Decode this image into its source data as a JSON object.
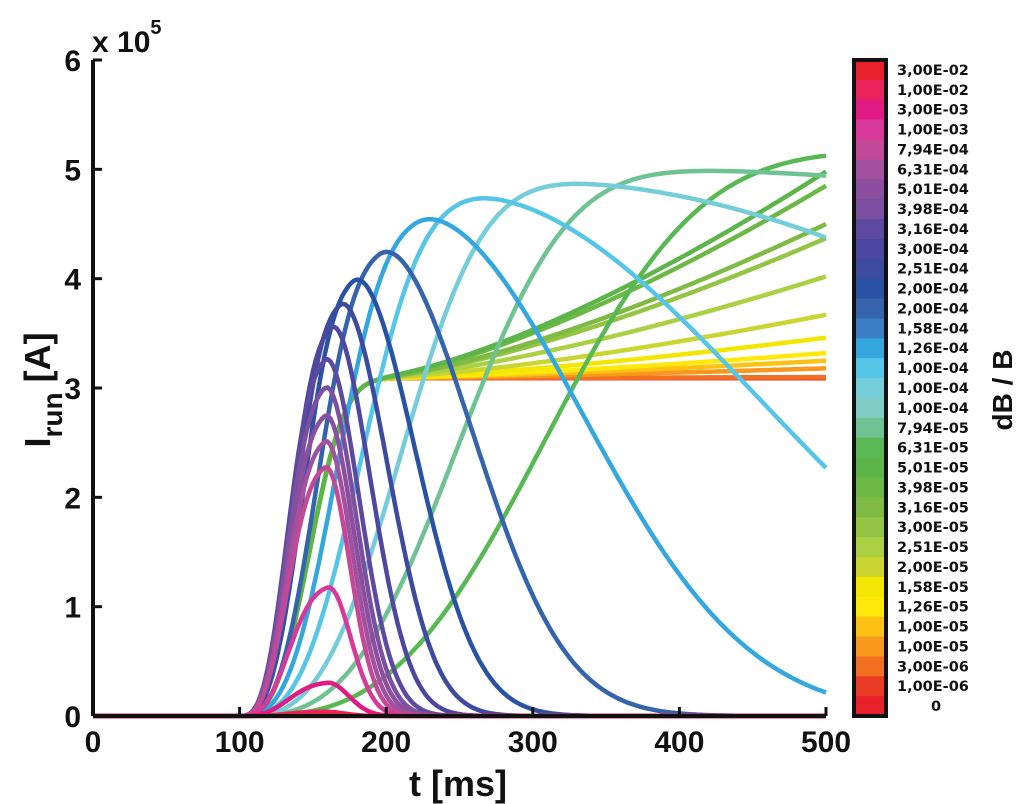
{
  "chart_data": {
    "type": "line",
    "xlabel": "t [ms]",
    "ylabel_main": "I",
    "ylabel_sub": "run",
    "ylabel_unit": " [A]",
    "y_multiplier": "x 10",
    "y_multiplier_exp": "5",
    "xlim": [
      0,
      500
    ],
    "ylim": [
      0,
      600000
    ],
    "x_ticks": [
      0,
      100,
      200,
      300,
      400,
      500
    ],
    "y_ticks": [
      0,
      100000,
      200000,
      300000,
      400000,
      500000,
      600000
    ],
    "x_tick_labels": [
      "0",
      "100",
      "200",
      "300",
      "400",
      "500"
    ],
    "y_tick_labels": [
      "0",
      "1",
      "2",
      "3",
      "4",
      "5",
      "6"
    ],
    "grid": false,
    "colorbar": {
      "title": "dB / B",
      "labels": [
        "3,00E-02",
        "1,00E-02",
        "3,00E-03",
        "1,00E-03",
        "7,94E-04",
        "6,31E-04",
        "5,01E-04",
        "3,98E-04",
        "3,16E-04",
        "3,00E-04",
        "2,51E-04",
        "2,00E-04",
        "2,00E-04",
        "1,58E-04",
        "1,26E-04",
        "1,00E-04",
        "1,00E-04",
        "1,00E-04",
        "7,94E-05",
        "6,31E-05",
        "5,01E-05",
        "3,98E-05",
        "3,16E-05",
        "3,00E-05",
        "2,51E-05",
        "2,00E-05",
        "1,58E-05",
        "1,26E-05",
        "1,00E-05",
        "1,00E-05",
        "3,00E-06",
        "1,00E-06",
        "0"
      ],
      "colors": [
        "#e8202a",
        "#e8245a",
        "#e21a84",
        "#d8399a",
        "#c44898",
        "#a2519f",
        "#8c4f9f",
        "#7c4fa0",
        "#5c4aa0",
        "#4c48a0",
        "#3c4aa0",
        "#2a52a4",
        "#3564ac",
        "#3c7ec4",
        "#34a7de",
        "#56c6e8",
        "#74cdd8",
        "#80cbc4",
        "#6fc393",
        "#58b954",
        "#5cb548",
        "#6cb844",
        "#7eba44",
        "#93c443",
        "#acd044",
        "#cad532",
        "#f3e600",
        "#ffe80a",
        "#ffc212",
        "#f8981d",
        "#f36f21",
        "#ea3c24",
        "#e8202a"
      ]
    },
    "series": [
      {
        "color": "#e8202a",
        "rise": 0.1,
        "peak": 0.5,
        "kind": "hump",
        "tpeak": 150,
        "decay": 50
      },
      {
        "color": "#e8245a",
        "rise": 0.1,
        "peak": 4000,
        "kind": "hump",
        "tpeak": 158,
        "decay": 18
      },
      {
        "color": "#e21a84",
        "rise": 0.1,
        "peak": 31000,
        "kind": "hump",
        "tpeak": 160,
        "decay": 20
      },
      {
        "color": "#d8399a",
        "rise": 0.1,
        "peak": 120000,
        "kind": "hump",
        "tpeak": 160,
        "decay": 22
      },
      {
        "color": "#c44898",
        "rise": 0.1,
        "peak": 232000,
        "kind": "hump",
        "tpeak": 158,
        "decay": 24
      },
      {
        "color": "#a2519f",
        "rise": 0.1,
        "peak": 256000,
        "kind": "hump",
        "tpeak": 158,
        "decay": 26
      },
      {
        "color": "#8c4f9f",
        "rise": 0.1,
        "peak": 280000,
        "kind": "hump",
        "tpeak": 158,
        "decay": 28
      },
      {
        "color": "#7c4fa0",
        "rise": 0.1,
        "peak": 306000,
        "kind": "hump",
        "tpeak": 158,
        "decay": 30
      },
      {
        "color": "#5c4aa0",
        "rise": 0.1,
        "peak": 332000,
        "kind": "hump",
        "tpeak": 158,
        "decay": 33
      },
      {
        "color": "#4c48a0",
        "rise": 0.1,
        "peak": 362000,
        "kind": "hump",
        "tpeak": 162,
        "decay": 38
      },
      {
        "color": "#3c4aa0",
        "rise": 0.1,
        "peak": 383000,
        "kind": "hump",
        "tpeak": 168,
        "decay": 46
      },
      {
        "color": "#2a52a4",
        "rise": 0.1,
        "peak": 405000,
        "kind": "hump",
        "tpeak": 177,
        "decay": 60
      },
      {
        "color": "#3564ac",
        "rise": 0.1,
        "peak": 430000,
        "kind": "hump",
        "tpeak": 195,
        "decay": 90
      },
      {
        "color": "#34a7de",
        "rise": 0.1,
        "peak": 459000,
        "kind": "hump",
        "tpeak": 220,
        "decay": 160
      },
      {
        "color": "#56c6e8",
        "rise": 0.1,
        "peak": 477000,
        "kind": "hump",
        "tpeak": 250,
        "decay": 290
      },
      {
        "color": "#74cdd8",
        "rise": 0.1,
        "peak": 489000,
        "kind": "hump",
        "tpeak": 300,
        "decay": 600
      },
      {
        "color": "#6fc393",
        "rise": 0.1,
        "peak": 500000,
        "kind": "hump",
        "tpeak": 370,
        "decay": 1200
      },
      {
        "color": "#58b954",
        "rise": 0.1,
        "peak": 517000,
        "kind": "hump",
        "tpeak": 480,
        "decay": 3000
      },
      {
        "color": "#5cb548",
        "rise": 0.1,
        "peak": 498000,
        "kind": "sat",
        "tpeak": 500,
        "decay": 0
      },
      {
        "color": "#6cb844",
        "rise": 0.1,
        "peak": 485000,
        "kind": "sat",
        "tpeak": 500,
        "decay": 0
      },
      {
        "color": "#7eba44",
        "rise": 0.1,
        "peak": 450000,
        "kind": "sat",
        "tpeak": 500,
        "decay": 0
      },
      {
        "color": "#93c443",
        "rise": 0.1,
        "peak": 437000,
        "kind": "sat",
        "tpeak": 500,
        "decay": 0
      },
      {
        "color": "#acd044",
        "rise": 0.1,
        "peak": 402000,
        "kind": "sat",
        "tpeak": 500,
        "decay": 0
      },
      {
        "color": "#cad532",
        "rise": 0.1,
        "peak": 367000,
        "kind": "sat",
        "tpeak": 500,
        "decay": 0
      },
      {
        "color": "#f3e600",
        "rise": 0.1,
        "peak": 346000,
        "kind": "sat",
        "tpeak": 500,
        "decay": 0
      },
      {
        "color": "#ffe80a",
        "rise": 0.1,
        "peak": 332000,
        "kind": "sat",
        "tpeak": 500,
        "decay": 0
      },
      {
        "color": "#ffc212",
        "rise": 0.1,
        "peak": 325000,
        "kind": "sat",
        "tpeak": 500,
        "decay": 0
      },
      {
        "color": "#f8981d",
        "rise": 0.1,
        "peak": 318000,
        "kind": "sat",
        "tpeak": 500,
        "decay": 0
      },
      {
        "color": "#f36f21",
        "rise": 0.1,
        "peak": 310000,
        "kind": "sat",
        "tpeak": 500,
        "decay": 0
      },
      {
        "color": "#ea3c24",
        "rise": 0.1,
        "peak": 309000,
        "kind": "sat",
        "tpeak": 500,
        "decay": 0
      }
    ]
  }
}
